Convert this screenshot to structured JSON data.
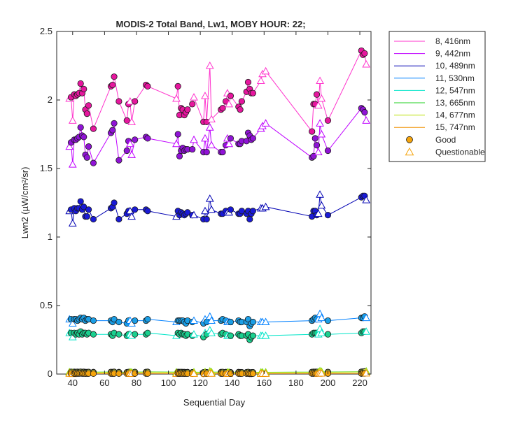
{
  "chart_data": {
    "type": "line",
    "title": "MODIS-2 Total Band, Lw1, MOBY HOUR: 22;",
    "xlabel": "Sequential Day",
    "ylabel": "Lwn2 (µW/cm²/sr)",
    "xlim": [
      30,
      227
    ],
    "ylim": [
      0,
      2.5
    ],
    "xticks": [
      40,
      60,
      80,
      100,
      120,
      140,
      160,
      180,
      200,
      220
    ],
    "yticks": [
      0,
      0.5,
      1,
      1.5,
      2,
      2.5
    ],
    "grid": false,
    "legend_position": "outside-right",
    "legend_markers": [
      {
        "label": "Good",
        "marker": "circle",
        "color": "#f5a40c"
      },
      {
        "label": "Questionable",
        "marker": "triangle",
        "color": "#f5a40c"
      }
    ],
    "x": [
      38,
      39,
      40,
      41,
      42,
      43,
      44,
      45,
      46,
      47,
      48,
      49,
      50,
      53,
      64,
      65,
      66,
      69,
      74,
      75,
      76,
      77,
      79,
      86,
      87,
      105,
      106,
      107,
      108,
      109,
      110,
      111,
      112,
      115,
      116,
      122,
      123,
      124,
      126,
      127,
      133,
      134,
      136,
      137,
      138,
      139,
      144,
      145,
      146,
      149,
      150,
      151,
      152,
      153,
      158,
      159,
      161,
      190,
      191,
      192,
      193,
      194,
      195,
      196,
      200,
      221,
      222,
      223,
      224
    ],
    "series": [
      {
        "name": "8, 416nm",
        "color": "#ff33cc",
        "fill": "#e6169e",
        "values": [
          2.01,
          2.02,
          1.85,
          2.04,
          2.03,
          2.04,
          2.05,
          2.12,
          2.05,
          2.08,
          1.93,
          1.9,
          1.96,
          1.79,
          2.1,
          2.11,
          2.17,
          1.99,
          1.85,
          1.97,
          1.99,
          1.84,
          1.99,
          2.11,
          2.1,
          2.01,
          2.1,
          1.89,
          1.94,
          1.93,
          1.89,
          1.91,
          1.93,
          1.97,
          2.02,
          1.84,
          2.03,
          1.84,
          2.25,
          1.86,
          1.93,
          1.94,
          1.99,
          2.05,
          1.97,
          2.03,
          1.95,
          1.93,
          1.99,
          2.06,
          2.13,
          2.08,
          2.05,
          2.05,
          2.14,
          2.19,
          2.21,
          1.77,
          1.97,
          1.97,
          2.04,
          1.96,
          2.14,
          2.01,
          1.85,
          2.36,
          2.33,
          2.34,
          2.26
        ],
        "questionable": [
          1,
          0,
          1,
          0,
          0,
          0,
          0,
          0,
          0,
          0,
          0,
          0,
          0,
          0,
          0,
          0,
          0,
          0,
          0,
          0,
          1,
          1,
          0,
          0,
          0,
          1,
          0,
          0,
          0,
          0,
          0,
          0,
          0,
          0,
          1,
          0,
          1,
          0,
          1,
          1,
          0,
          0,
          0,
          1,
          1,
          0,
          0,
          0,
          0,
          0,
          0,
          0,
          0,
          0,
          1,
          1,
          1,
          0,
          0,
          0,
          0,
          1,
          1,
          1,
          0,
          0,
          0,
          0,
          1
        ]
      },
      {
        "name": "9, 442nm",
        "color": "#bf00ff",
        "fill": "#9013d6",
        "values": [
          1.66,
          1.69,
          1.53,
          1.71,
          1.71,
          1.72,
          1.73,
          1.8,
          1.74,
          1.73,
          1.6,
          1.58,
          1.66,
          1.54,
          1.76,
          1.78,
          1.83,
          1.56,
          1.63,
          1.7,
          1.68,
          1.6,
          1.71,
          1.73,
          1.72,
          1.68,
          1.75,
          1.59,
          1.63,
          1.65,
          1.63,
          1.64,
          1.64,
          1.64,
          1.71,
          1.62,
          1.72,
          1.62,
          1.8,
          1.67,
          1.62,
          1.62,
          1.67,
          1.72,
          1.68,
          1.72,
          1.68,
          1.68,
          1.7,
          1.7,
          1.76,
          1.74,
          1.71,
          1.72,
          1.79,
          1.81,
          1.83,
          1.58,
          1.59,
          1.72,
          1.67,
          1.62,
          1.83,
          1.75,
          1.63,
          1.94,
          1.93,
          1.91,
          1.85
        ],
        "questionable": [
          1,
          0,
          1,
          0,
          0,
          0,
          0,
          0,
          0,
          0,
          0,
          0,
          0,
          0,
          0,
          0,
          0,
          0,
          0,
          0,
          1,
          1,
          0,
          0,
          0,
          1,
          0,
          0,
          0,
          0,
          0,
          0,
          0,
          0,
          1,
          0,
          1,
          0,
          1,
          1,
          0,
          0,
          0,
          1,
          1,
          0,
          0,
          0,
          0,
          0,
          0,
          0,
          0,
          0,
          1,
          1,
          1,
          0,
          0,
          0,
          0,
          1,
          1,
          1,
          0,
          0,
          0,
          0,
          1
        ]
      },
      {
        "name": "10, 489nm",
        "color": "#0000b3",
        "fill": "#1a1ad6",
        "values": [
          1.19,
          1.2,
          1.1,
          1.21,
          1.19,
          1.21,
          1.21,
          1.26,
          1.2,
          1.22,
          1.15,
          1.15,
          1.2,
          1.13,
          1.21,
          1.22,
          1.25,
          1.13,
          1.17,
          1.19,
          1.19,
          1.15,
          1.2,
          1.2,
          1.19,
          1.15,
          1.19,
          1.16,
          1.18,
          1.17,
          1.16,
          1.17,
          1.18,
          1.16,
          1.16,
          1.13,
          1.19,
          1.13,
          1.28,
          1.2,
          1.17,
          1.17,
          1.19,
          1.18,
          1.18,
          1.2,
          1.17,
          1.17,
          1.19,
          1.17,
          1.19,
          1.13,
          1.17,
          1.19,
          1.21,
          1.21,
          1.22,
          1.15,
          1.19,
          1.19,
          1.16,
          1.17,
          1.31,
          1.23,
          1.16,
          1.29,
          1.3,
          1.3,
          1.27
        ],
        "questionable": [
          1,
          0,
          1,
          0,
          0,
          0,
          0,
          0,
          0,
          0,
          0,
          0,
          0,
          0,
          0,
          0,
          0,
          0,
          0,
          0,
          1,
          1,
          0,
          0,
          0,
          1,
          0,
          0,
          0,
          0,
          0,
          0,
          0,
          0,
          1,
          0,
          1,
          0,
          1,
          1,
          0,
          0,
          0,
          1,
          1,
          0,
          0,
          0,
          0,
          0,
          0,
          0,
          0,
          0,
          1,
          1,
          1,
          0,
          0,
          0,
          0,
          1,
          1,
          1,
          0,
          0,
          0,
          0,
          1
        ]
      },
      {
        "name": "11, 530nm",
        "color": "#0080ff",
        "fill": "#1a9ee6",
        "values": [
          0.4,
          0.4,
          0.37,
          0.4,
          0.4,
          0.39,
          0.4,
          0.41,
          0.4,
          0.41,
          0.39,
          0.4,
          0.4,
          0.39,
          0.39,
          0.38,
          0.4,
          0.38,
          0.37,
          0.39,
          0.39,
          0.37,
          0.39,
          0.39,
          0.4,
          0.38,
          0.39,
          0.39,
          0.39,
          0.39,
          0.38,
          0.37,
          0.39,
          0.38,
          0.39,
          0.37,
          0.4,
          0.38,
          0.42,
          0.39,
          0.39,
          0.4,
          0.39,
          0.38,
          0.38,
          0.38,
          0.39,
          0.38,
          0.38,
          0.38,
          0.4,
          0.35,
          0.37,
          0.38,
          0.38,
          0.38,
          0.38,
          0.39,
          0.4,
          0.41,
          0.4,
          0.4,
          0.44,
          0.41,
          0.39,
          0.41,
          0.41,
          0.42,
          0.41
        ],
        "questionable": [
          1,
          0,
          1,
          0,
          0,
          0,
          0,
          0,
          0,
          0,
          0,
          0,
          0,
          0,
          0,
          0,
          0,
          0,
          0,
          0,
          1,
          1,
          0,
          0,
          0,
          1,
          0,
          0,
          0,
          0,
          0,
          0,
          0,
          0,
          1,
          0,
          1,
          0,
          1,
          1,
          0,
          0,
          0,
          1,
          1,
          0,
          0,
          0,
          0,
          0,
          0,
          0,
          0,
          0,
          1,
          1,
          1,
          0,
          0,
          0,
          0,
          1,
          1,
          1,
          0,
          0,
          0,
          0,
          1
        ]
      },
      {
        "name": "12, 547nm",
        "color": "#00e5c8",
        "fill": "#1ad08f",
        "values": [
          0.3,
          0.3,
          0.27,
          0.3,
          0.29,
          0.3,
          0.29,
          0.31,
          0.29,
          0.3,
          0.3,
          0.29,
          0.3,
          0.29,
          0.29,
          0.28,
          0.3,
          0.29,
          0.28,
          0.29,
          0.29,
          0.28,
          0.29,
          0.29,
          0.3,
          0.28,
          0.3,
          0.29,
          0.3,
          0.29,
          0.29,
          0.28,
          0.29,
          0.28,
          0.29,
          0.27,
          0.3,
          0.29,
          0.32,
          0.3,
          0.29,
          0.3,
          0.29,
          0.28,
          0.28,
          0.28,
          0.29,
          0.28,
          0.28,
          0.28,
          0.29,
          0.25,
          0.27,
          0.28,
          0.28,
          0.28,
          0.28,
          0.29,
          0.3,
          0.3,
          0.3,
          0.29,
          0.33,
          0.3,
          0.29,
          0.3,
          0.31,
          0.31,
          0.31
        ],
        "questionable": [
          1,
          0,
          1,
          0,
          0,
          0,
          0,
          0,
          0,
          0,
          0,
          0,
          0,
          0,
          0,
          0,
          0,
          0,
          0,
          0,
          1,
          1,
          0,
          0,
          0,
          1,
          0,
          0,
          0,
          0,
          0,
          0,
          0,
          0,
          1,
          0,
          1,
          0,
          1,
          1,
          0,
          0,
          0,
          1,
          1,
          0,
          0,
          0,
          0,
          0,
          0,
          0,
          0,
          0,
          1,
          1,
          1,
          0,
          0,
          0,
          0,
          1,
          1,
          1,
          0,
          0,
          0,
          0,
          1
        ]
      },
      {
        "name": "13, 665nm",
        "color": "#20d020",
        "fill": "#3fc43f",
        "values": [
          0.015,
          0.016,
          0.01,
          0.016,
          0.015,
          0.016,
          0.015,
          0.017,
          0.015,
          0.016,
          0.014,
          0.014,
          0.015,
          0.014,
          0.015,
          0.014,
          0.016,
          0.014,
          0.013,
          0.015,
          0.015,
          0.013,
          0.015,
          0.015,
          0.016,
          0.014,
          0.015,
          0.014,
          0.015,
          0.014,
          0.014,
          0.013,
          0.014,
          0.013,
          0.014,
          0.012,
          0.015,
          0.013,
          0.02,
          0.015,
          0.014,
          0.015,
          0.014,
          0.013,
          0.013,
          0.013,
          0.014,
          0.013,
          0.013,
          0.013,
          0.015,
          0.011,
          0.012,
          0.013,
          0.013,
          0.013,
          0.013,
          0.015,
          0.016,
          0.016,
          0.016,
          0.015,
          0.022,
          0.018,
          0.015,
          0.017,
          0.018,
          0.019,
          0.02
        ],
        "questionable": [
          1,
          0,
          1,
          0,
          0,
          0,
          0,
          0,
          0,
          0,
          0,
          0,
          0,
          0,
          0,
          0,
          0,
          0,
          0,
          0,
          1,
          1,
          0,
          0,
          0,
          1,
          0,
          0,
          0,
          0,
          0,
          0,
          0,
          0,
          1,
          0,
          1,
          0,
          1,
          1,
          0,
          0,
          0,
          1,
          1,
          0,
          0,
          0,
          0,
          0,
          0,
          0,
          0,
          0,
          1,
          1,
          1,
          0,
          0,
          0,
          0,
          1,
          1,
          1,
          0,
          0,
          0,
          0,
          1
        ]
      },
      {
        "name": "14, 677nm",
        "color": "#b8e000",
        "fill": "#c8d84a",
        "values": [
          0.013,
          0.014,
          0.009,
          0.014,
          0.013,
          0.014,
          0.013,
          0.015,
          0.013,
          0.014,
          0.012,
          0.012,
          0.013,
          0.012,
          0.013,
          0.012,
          0.014,
          0.012,
          0.011,
          0.013,
          0.013,
          0.011,
          0.013,
          0.013,
          0.014,
          0.012,
          0.013,
          0.012,
          0.013,
          0.012,
          0.012,
          0.011,
          0.012,
          0.011,
          0.012,
          0.01,
          0.013,
          0.011,
          0.018,
          0.013,
          0.012,
          0.013,
          0.012,
          0.011,
          0.011,
          0.011,
          0.012,
          0.011,
          0.011,
          0.011,
          0.013,
          0.009,
          0.01,
          0.011,
          0.011,
          0.011,
          0.011,
          0.013,
          0.014,
          0.014,
          0.014,
          0.013,
          0.02,
          0.016,
          0.013,
          0.015,
          0.016,
          0.017,
          0.018
        ],
        "questionable": [
          1,
          0,
          1,
          0,
          0,
          0,
          0,
          0,
          0,
          0,
          0,
          0,
          0,
          0,
          0,
          0,
          0,
          0,
          0,
          0,
          1,
          1,
          0,
          0,
          0,
          1,
          0,
          0,
          0,
          0,
          0,
          0,
          0,
          0,
          1,
          0,
          1,
          0,
          1,
          1,
          0,
          0,
          0,
          1,
          1,
          0,
          0,
          0,
          0,
          0,
          0,
          0,
          0,
          0,
          1,
          1,
          1,
          0,
          0,
          0,
          0,
          1,
          1,
          1,
          0,
          0,
          0,
          0,
          1
        ]
      },
      {
        "name": "15, 747nm",
        "color": "#f09000",
        "fill": "#f5a40c",
        "values": [
          0.004,
          0.004,
          0.002,
          0.004,
          0.004,
          0.004,
          0.004,
          0.005,
          0.004,
          0.004,
          0.003,
          0.003,
          0.004,
          0.003,
          0.004,
          0.003,
          0.004,
          0.003,
          0.003,
          0.004,
          0.004,
          0.003,
          0.004,
          0.004,
          0.004,
          0.003,
          0.004,
          0.003,
          0.004,
          0.003,
          0.003,
          0.003,
          0.003,
          0.003,
          0.003,
          0.002,
          0.004,
          0.003,
          0.006,
          0.004,
          0.003,
          0.004,
          0.003,
          0.003,
          0.003,
          0.003,
          0.003,
          0.003,
          0.003,
          0.003,
          0.004,
          0.002,
          0.002,
          0.003,
          0.003,
          0.003,
          0.003,
          0.004,
          0.004,
          0.004,
          0.004,
          0.004,
          0.007,
          0.005,
          0.004,
          0.004,
          0.005,
          0.005,
          0.006
        ],
        "questionable": [
          1,
          0,
          1,
          0,
          0,
          0,
          0,
          0,
          0,
          0,
          0,
          0,
          0,
          0,
          0,
          0,
          0,
          0,
          0,
          0,
          1,
          1,
          0,
          0,
          0,
          1,
          0,
          0,
          0,
          0,
          0,
          0,
          0,
          0,
          1,
          0,
          1,
          0,
          1,
          1,
          0,
          0,
          0,
          1,
          1,
          0,
          0,
          0,
          0,
          0,
          0,
          0,
          0,
          0,
          1,
          1,
          1,
          0,
          0,
          0,
          0,
          1,
          1,
          1,
          0,
          0,
          0,
          0,
          1
        ]
      }
    ]
  }
}
